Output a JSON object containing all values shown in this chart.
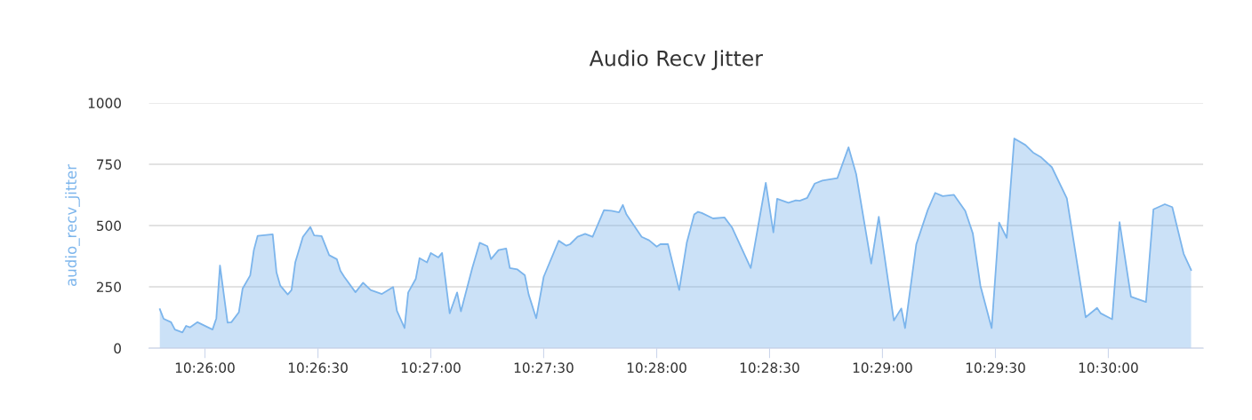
{
  "chart_data": {
    "type": "area",
    "title": "Audio Recv Jitter",
    "ylabel": "audio_recv_jitter",
    "x": [
      10.43,
      10.43028,
      10.43083,
      10.43111,
      10.43167,
      10.43194,
      10.43222,
      10.43278,
      10.43389,
      10.43417,
      10.43444,
      10.435,
      10.43528,
      10.43583,
      10.43611,
      10.43667,
      10.43694,
      10.43722,
      10.43833,
      10.43861,
      10.43889,
      10.43944,
      10.43972,
      10.44,
      10.44056,
      10.44111,
      10.44139,
      10.44194,
      10.4425,
      10.44306,
      10.44333,
      10.44361,
      10.44444,
      10.445,
      10.44556,
      10.44639,
      10.44722,
      10.4475,
      10.44806,
      10.44833,
      10.44889,
      10.44917,
      10.44972,
      10.45,
      10.45056,
      10.45083,
      10.45139,
      10.45194,
      10.45222,
      10.45306,
      10.45361,
      10.45417,
      10.45444,
      10.455,
      10.45556,
      10.45583,
      10.45639,
      10.45694,
      10.45722,
      10.45778,
      10.45833,
      10.45944,
      10.46,
      10.46028,
      10.46083,
      10.46139,
      10.46194,
      10.46278,
      10.46333,
      10.46389,
      10.46417,
      10.46444,
      10.46556,
      10.46611,
      10.46667,
      10.46694,
      10.4675,
      10.46833,
      10.46889,
      10.46944,
      10.46972,
      10.47,
      10.47083,
      10.47167,
      10.47222,
      10.47361,
      10.47472,
      10.47528,
      10.47556,
      10.47639,
      10.47694,
      10.47722,
      10.47778,
      10.47833,
      10.47889,
      10.48,
      10.48083,
      10.48139,
      10.4825,
      10.48306,
      10.48417,
      10.48472,
      10.485,
      10.48583,
      10.48667,
      10.48722,
      10.48778,
      10.48861,
      10.48944,
      10.49,
      10.49056,
      10.49139,
      10.49194,
      10.4925,
      10.49306,
      10.49389,
      10.49444,
      10.495,
      10.49583,
      10.49694,
      10.49833,
      10.49917,
      10.49944,
      10.50028,
      10.50083,
      10.50167,
      10.50278,
      10.50333,
      10.50417,
      10.50472,
      10.50556,
      10.50611
    ],
    "series": [
      {
        "color": "#7cb5ec",
        "values": [
          159,
          120,
          106,
          76,
          64,
          91,
          85,
          106,
          76,
          122,
          337,
          104,
          106,
          146,
          243,
          297,
          400,
          458,
          464,
          309,
          255,
          219,
          237,
          351,
          454,
          494,
          460,
          457,
          379,
          363,
          315,
          291,
          228,
          267,
          237,
          221,
          249,
          152,
          82,
          227,
          283,
          367,
          350,
          388,
          370,
          388,
          142,
          227,
          150,
          327,
          430,
          416,
          363,
          400,
          406,
          327,
          321,
          297,
          219,
          122,
          291,
          438,
          418,
          424,
          454,
          466,
          454,
          563,
          560,
          554,
          584,
          545,
          454,
          440,
          414,
          424,
          424,
          237,
          430,
          545,
          556,
          551,
          529,
          533,
          493,
          327,
          674,
          472,
          609,
          593,
          603,
          601,
          613,
          671,
          683,
          693,
          819,
          710,
          345,
          536,
          113,
          162,
          82,
          424,
          563,
          633,
          620,
          625,
          560,
          468,
          255,
          82,
          512,
          450,
          855,
          828,
          798,
          780,
          738,
          611,
          126,
          164,
          142,
          118,
          514,
          210,
          188,
          566,
          587,
          575,
          385,
          319
        ]
      }
    ],
    "xlim": [
      10.4292,
      10.507
    ],
    "xticks": [
      {
        "value": 10.43333,
        "label": "10:26:00"
      },
      {
        "value": 10.44167,
        "label": "10:26:30"
      },
      {
        "value": 10.45,
        "label": "10:27:00"
      },
      {
        "value": 10.45833,
        "label": "10:27:30"
      },
      {
        "value": 10.46667,
        "label": "10:28:00"
      },
      {
        "value": 10.475,
        "label": "10:28:30"
      },
      {
        "value": 10.48333,
        "label": "10:29:00"
      },
      {
        "value": 10.49167,
        "label": "10:29:30"
      },
      {
        "value": 10.5,
        "label": "10:30:00"
      }
    ],
    "ylim": [
      0,
      1000
    ],
    "yticks": [
      0,
      250,
      500,
      750,
      1000
    ],
    "grid": "y"
  }
}
